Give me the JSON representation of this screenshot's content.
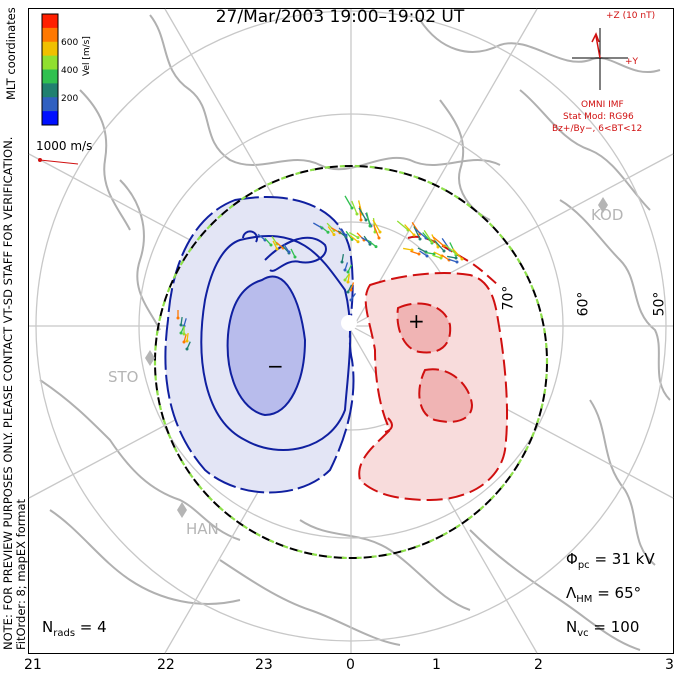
{
  "title": "27/Mar/2003  19:00–19:02  UT",
  "side_note": {
    "line1": "NOTE: FOR PREVIEW PURPOSES ONLY. PLEASE CONTACT VT-SD STAFF FOR VERIFICATION.",
    "line2": "FitOrder: 8; mapEX format"
  },
  "mlt_coordinates": "MLT coordinates",
  "colorbar": {
    "label": "Vel [m/s]",
    "ticks": [
      "600",
      "400",
      "200"
    ],
    "colors": [
      "#ff2000",
      "#ff7800",
      "#f0c000",
      "#90e030",
      "#30c050",
      "#208070",
      "#3060c0",
      "#0010ff"
    ]
  },
  "velocity_reference": "1000 m/s",
  "imf": {
    "z_label": "+Z (10 nT)",
    "y_label": "+Y",
    "source": "OMNI IMF",
    "stat_mod": "Stat Mod: RG96",
    "condition": "Bz+/By−, 6<BT<12"
  },
  "latitude_labels": [
    "70°",
    "60°",
    "50°"
  ],
  "mlt_labels": [
    "21",
    "22",
    "23",
    "0",
    "1",
    "2",
    "3"
  ],
  "stations": [
    "KOD",
    "STO",
    "HAN"
  ],
  "stats": {
    "phi_pc": "Φ",
    "phi_sub": "pc",
    "phi_value": " = 31 kV",
    "lambda": "Λ",
    "lambda_sub": "HM",
    "lambda_value": " = 65°",
    "nvc": "N",
    "nvc_sub": "vc",
    "nvc_value": " = 100",
    "nrads": "N",
    "nrads_sub": "rads",
    "nrads_value": " = 4"
  },
  "potential_markers": {
    "min": "−",
    "max": "+"
  },
  "colors": {
    "negative_contour": "#1020a0",
    "negative_fill": "#e3e5f5",
    "negative_inner_fill": "#b8bcec",
    "positive_contour": "#d01010",
    "positive_fill": "#f8dcdc",
    "positive_inner_fill": "#f0b4b4",
    "boundary_green": "#8ee04a",
    "grid": "#c8c8c8",
    "coast": "#b0b0b0"
  }
}
